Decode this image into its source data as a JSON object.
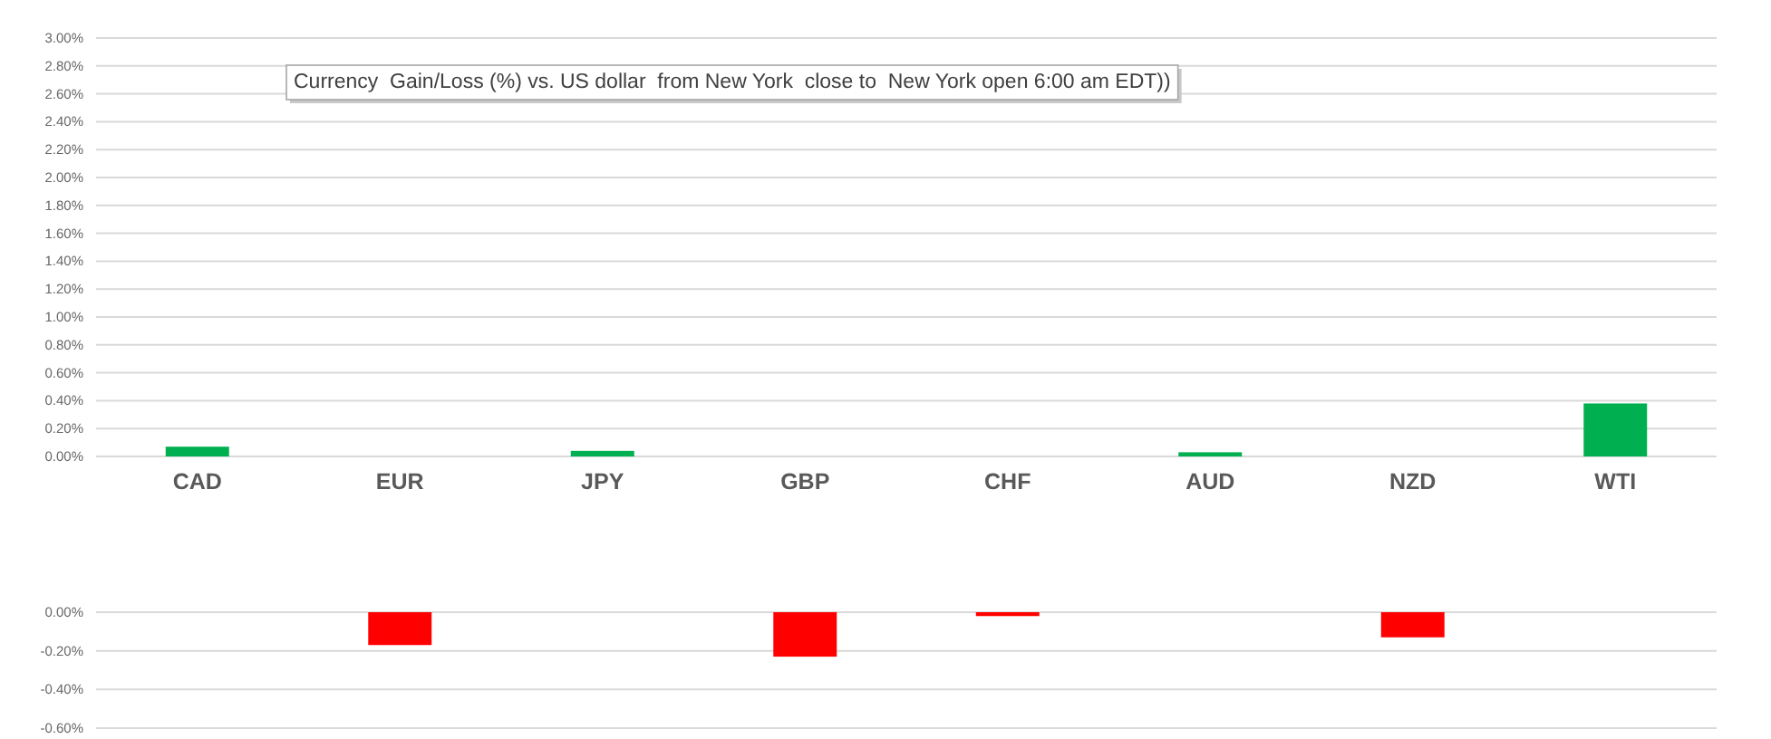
{
  "chart_data": [
    {
      "type": "bar",
      "title": "Currency  Gain/Loss (%) vs. US dollar  from New York  close to  New York open 6:00 am EDT))",
      "categories": [
        "CAD",
        "EUR",
        "JPY",
        "GBP",
        "CHF",
        "AUD",
        "NZD",
        "WTI"
      ],
      "values": [
        0.07,
        null,
        0.04,
        null,
        null,
        0.03,
        null,
        0.38
      ],
      "color": "#00b050",
      "ylim": [
        0,
        3
      ],
      "yticks": [
        {
          "value": 0,
          "label": "0.00%"
        },
        {
          "value": 0.2,
          "label": "0.20%"
        },
        {
          "value": 0.4,
          "label": "0.40%"
        },
        {
          "value": 0.6,
          "label": "0.60%"
        },
        {
          "value": 0.8,
          "label": "0.80%"
        },
        {
          "value": 1,
          "label": "1.00%"
        },
        {
          "value": 1.2,
          "label": "1.20%"
        },
        {
          "value": 1.4,
          "label": "1.40%"
        },
        {
          "value": 1.6,
          "label": "1.60%"
        },
        {
          "value": 1.8,
          "label": "1.80%"
        },
        {
          "value": 2,
          "label": "2.00%"
        },
        {
          "value": 2.2,
          "label": "2.20%"
        },
        {
          "value": 2.4,
          "label": "2.40%"
        },
        {
          "value": 2.6,
          "label": "2.60%"
        },
        {
          "value": 2.8,
          "label": "2.80%"
        },
        {
          "value": 3,
          "label": "3.00%"
        }
      ],
      "grid": "y"
    },
    {
      "type": "bar",
      "categories": [
        "CAD",
        "EUR",
        "JPY",
        "GBP",
        "CHF",
        "AUD",
        "NZD",
        "WTI"
      ],
      "values": [
        null,
        -0.17,
        null,
        -0.23,
        -0.02,
        null,
        -0.13,
        null
      ],
      "color": "#ff0000",
      "ylim": [
        -0.6,
        0
      ],
      "yticks": [
        {
          "value": 0,
          "label": "0.00%"
        },
        {
          "value": -0.2,
          "label": "-0.20%"
        },
        {
          "value": -0.4,
          "label": "-0.40%"
        },
        {
          "value": -0.6,
          "label": "-0.60%"
        }
      ],
      "grid": "y",
      "tick_labels": "y"
    }
  ]
}
